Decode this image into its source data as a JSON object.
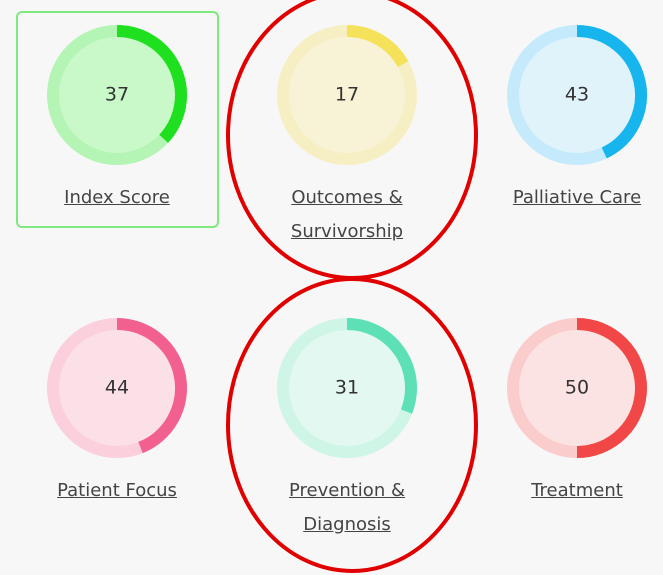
{
  "chart_data": {
    "type": "gauge",
    "categories": [
      "Index Score",
      "Outcomes & Survivorship",
      "Palliative Care",
      "Patient Focus",
      "Prevention & Diagnosis",
      "Treatment"
    ],
    "values": [
      37,
      17,
      43,
      44,
      31,
      50
    ],
    "ylim": [
      0,
      100
    ],
    "colors": [
      "#1fe01f",
      "#f6e25a",
      "#17b5ee",
      "#f2608f",
      "#5ee0b6",
      "#f24747"
    ],
    "track_colors": [
      "#b4f4b4",
      "#f6efc4",
      "#c4eafb",
      "#fbcfdc",
      "#cff5e7",
      "#fbcccc"
    ],
    "fill_colors": [
      "#c9f8c9",
      "#f8f3d6",
      "#e0f3fb",
      "#fbe0e8",
      "#e3f8f0",
      "#fbe3e3"
    ]
  }
}
